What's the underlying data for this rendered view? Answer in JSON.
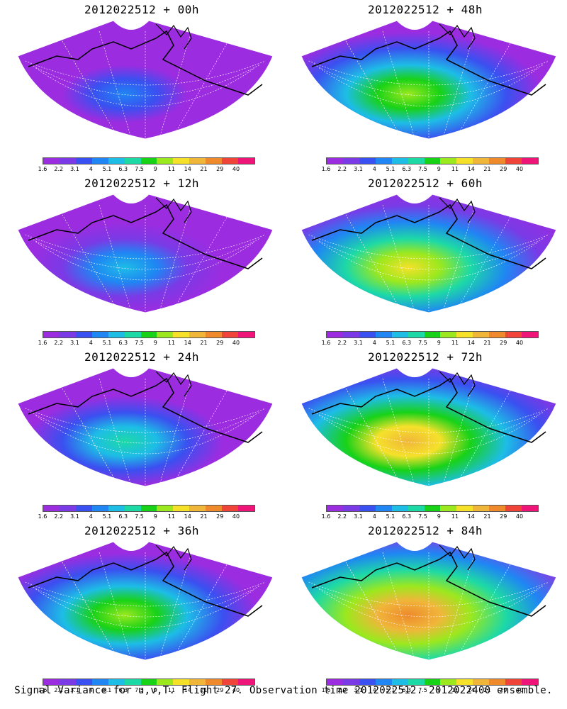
{
  "panels": [
    {
      "title": "2012022512 + 00h",
      "level": 0.15
    },
    {
      "title": "2012022512 + 48h",
      "level": 0.55
    },
    {
      "title": "2012022512 + 12h",
      "level": 0.3
    },
    {
      "title": "2012022512 + 60h",
      "level": 0.65
    },
    {
      "title": "2012022512 + 24h",
      "level": 0.4
    },
    {
      "title": "2012022512 + 72h",
      "level": 0.75
    },
    {
      "title": "2012022512 + 36h",
      "level": 0.5
    },
    {
      "title": "2012022512 + 84h",
      "level": 0.85
    }
  ],
  "colorbar": {
    "labels": [
      "1.6",
      "2.2",
      "3.1",
      "4",
      "5.1",
      "6.3",
      "7.5",
      "9",
      "11",
      "14",
      "21",
      "29",
      "40"
    ],
    "colors": [
      "#9c2ce0",
      "#7a3ae6",
      "#3a50f0",
      "#1f86f3",
      "#1dbde6",
      "#1dd9a6",
      "#18d218",
      "#9be81e",
      "#f5e12a",
      "#f0b63a",
      "#ee8a2c",
      "#f0443a",
      "#ef1478"
    ]
  },
  "footer": "Signal Variance for u,v,T. Flight 27. Observation time 2012022512. 2012022400 ensemble."
}
